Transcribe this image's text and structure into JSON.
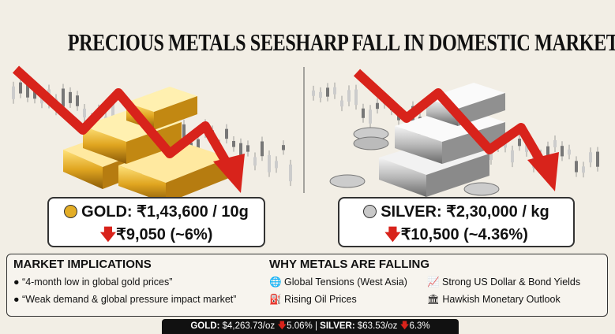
{
  "title": "PRECIOUS METALS SEESHARP FALL IN DOMESTIC MARKET",
  "gold": {
    "price": "GOLD: ₹1,43,600 / 10g",
    "change": "₹9,050 (~6%)"
  },
  "silver": {
    "price": "SILVER: ₹2,30,000 / kg",
    "change": "₹10,500 (~4.36%)"
  },
  "implications": {
    "heading": "MARKET IMPLICATIONS",
    "items": [
      "“4-month low in global gold prices”",
      "“Weak demand & global pressure impact market”"
    ]
  },
  "reasons": {
    "heading": "WHY METALS ARE FALLING",
    "items": [
      "Global Tensions (West Asia)",
      "Strong US Dollar & Bond Yields",
      "Rising Oil Prices",
      "Hawkish Monetary Outlook"
    ]
  },
  "ticker": {
    "gold_label": "GOLD:",
    "gold_price": "$4,263.73/oz",
    "gold_change": "5.06%",
    "separator": "|",
    "silver_label": "SILVER:",
    "silver_price": "$63.53/oz",
    "silver_change": "6.3%"
  }
}
